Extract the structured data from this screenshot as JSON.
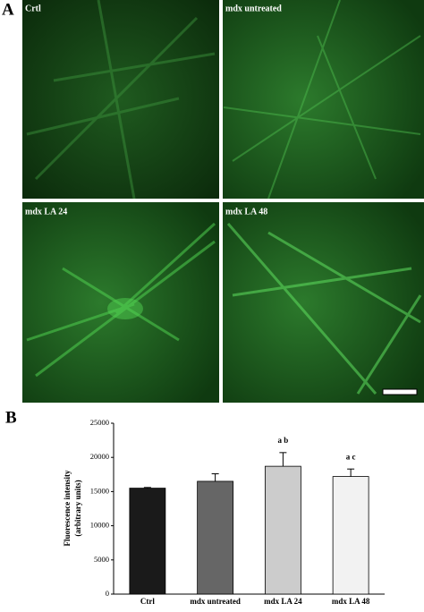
{
  "panel_a": {
    "label": "A",
    "images": [
      {
        "label": "Crtl"
      },
      {
        "label": "mdx untreated"
      },
      {
        "label": "mdx LA 24"
      },
      {
        "label": "mdx LA 48"
      }
    ]
  },
  "panel_b": {
    "label": "B"
  },
  "chart_data": {
    "type": "bar",
    "y_label": [
      "Fluorescence intensity",
      "(arbitrary units)"
    ],
    "categories": [
      "Ctrl",
      "mdx untreated",
      "mdx LA 24",
      "mdx LA 48"
    ],
    "values": [
      15500,
      16500,
      18700,
      17200
    ],
    "errors": [
      100,
      1100,
      2000,
      1100
    ],
    "colors": [
      "#1a1a1a",
      "#666666",
      "#cccccc",
      "#f2f2f2"
    ],
    "bar_annotations": [
      null,
      null,
      "a b",
      "a c"
    ],
    "ylim": [
      0,
      25000
    ],
    "yticks": [
      0,
      5000,
      10000,
      15000,
      20000,
      25000
    ]
  }
}
